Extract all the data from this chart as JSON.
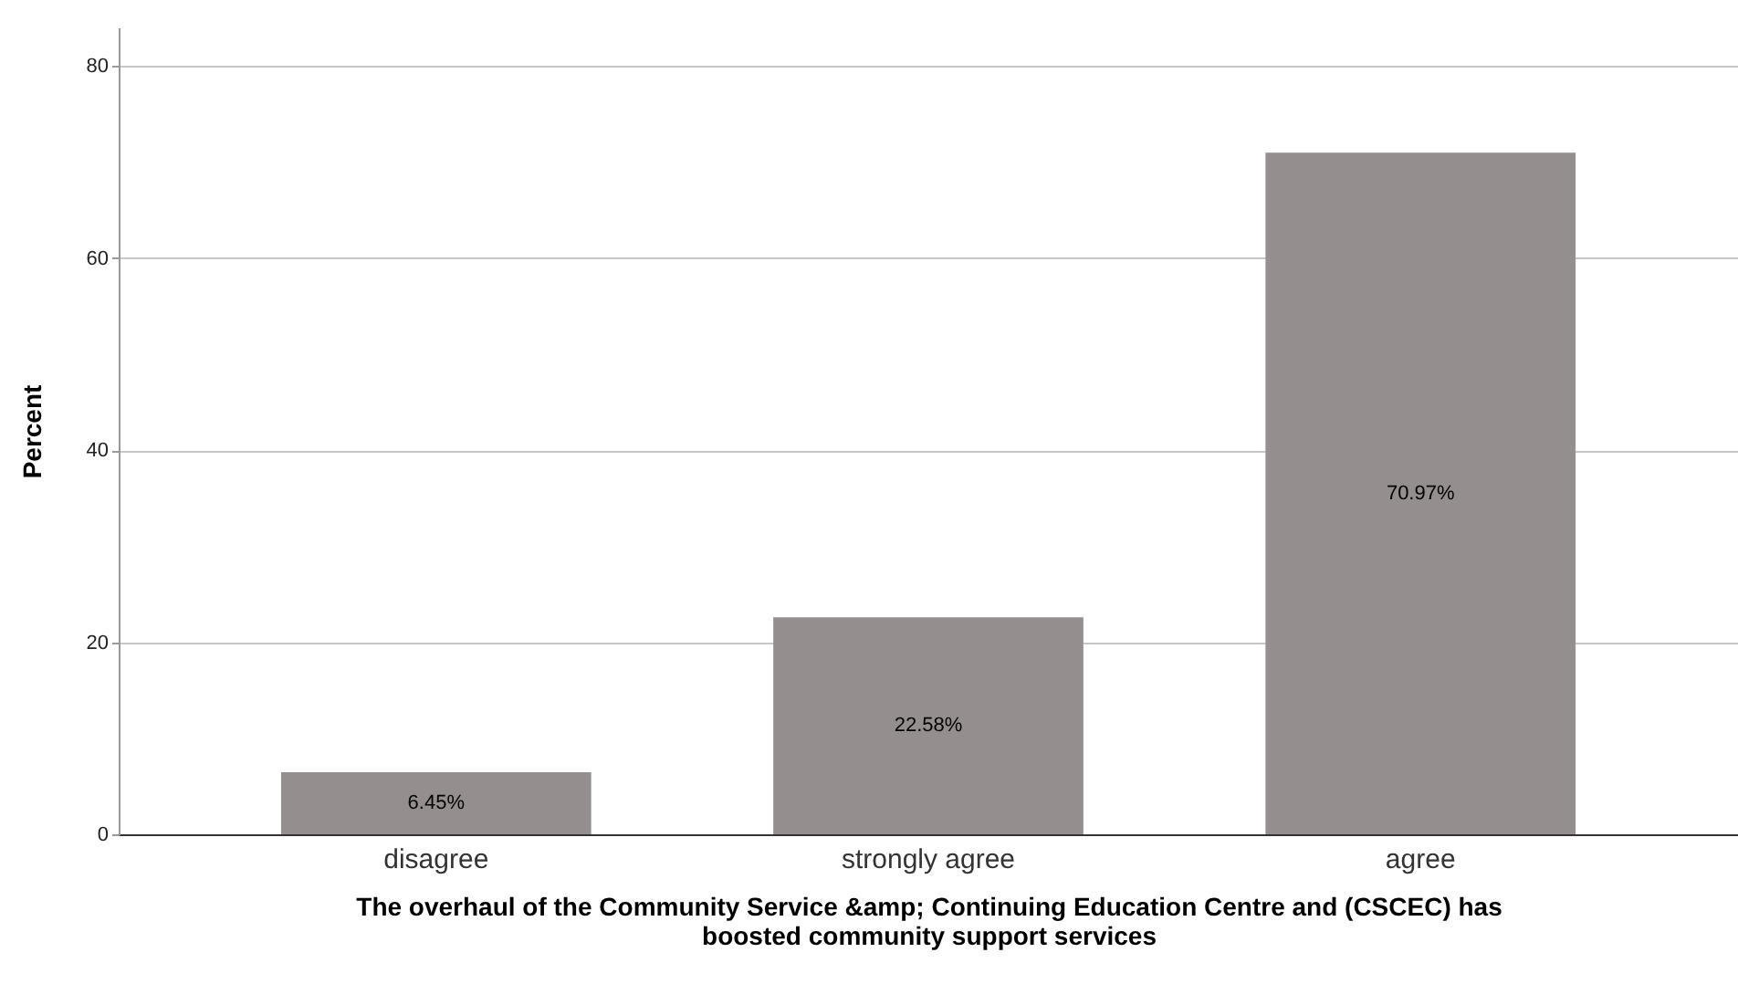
{
  "chart_data": {
    "type": "bar",
    "xlabel": "The overhaul of the Community Service &amp; Continuing Education Centre and (CSCEC) has boosted community support services",
    "ylabel": "Percent",
    "categories": [
      "disagree",
      "strongly agree",
      "agree"
    ],
    "values": [
      6.45,
      22.58,
      70.97
    ],
    "value_labels": [
      "6.45%",
      "22.58%",
      "70.97%"
    ],
    "color": "#958e8e",
    "ylim": [
      0,
      84
    ],
    "yticks": [
      0,
      20,
      40,
      60,
      80
    ],
    "grid": "y"
  }
}
